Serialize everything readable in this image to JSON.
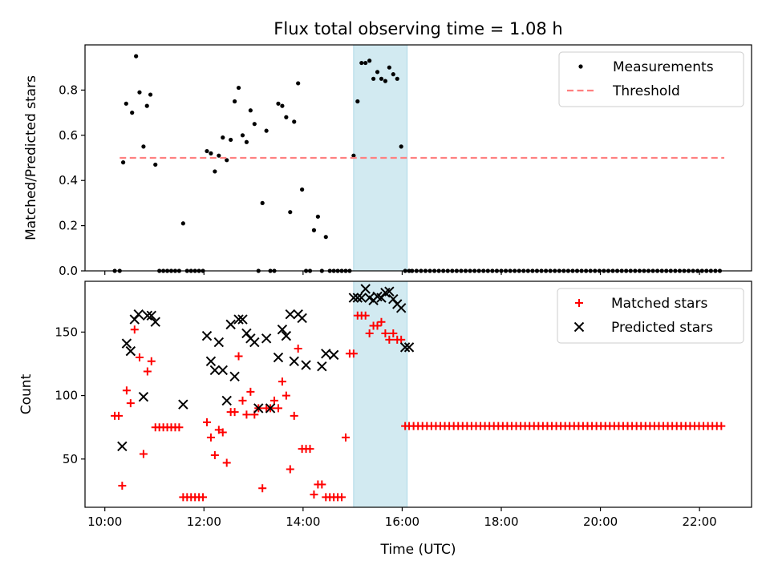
{
  "chart_data": {
    "title": "Flux total observing time = 1.08 h",
    "x_unit": "hours (UTC)",
    "xlim": [
      9.6,
      23.05
    ],
    "highlight_interval": [
      15.02,
      16.1
    ],
    "highlight_color": "#add8e6",
    "x_ticks": [
      10,
      12,
      14,
      16,
      18,
      20,
      22
    ],
    "x_tick_labels": [
      "10:00",
      "12:00",
      "14:00",
      "16:00",
      "18:00",
      "20:00",
      "22:00"
    ],
    "xlabel": "Time (UTC)",
    "top": {
      "type": "scatter",
      "ylabel": "Matched/Predicted stars",
      "ylim": [
        0,
        1.0
      ],
      "y_ticks": [
        0.0,
        0.2,
        0.4,
        0.6,
        0.8
      ],
      "y_tick_labels": [
        "0.0",
        "0.2",
        "0.4",
        "0.6",
        "0.8"
      ],
      "legend_position": "top-right",
      "series": [
        {
          "name": "Measurements",
          "color": "#000000",
          "marker": "dot",
          "x": [
            10.2,
            10.3,
            10.37,
            10.43,
            10.55,
            10.63,
            10.7,
            10.78,
            10.85,
            10.92,
            11.02,
            11.1,
            11.18,
            11.26,
            11.34,
            11.42,
            11.5,
            11.58,
            11.66,
            11.74,
            11.82,
            11.9,
            11.98,
            12.06,
            12.14,
            12.22,
            12.3,
            12.38,
            12.46,
            12.54,
            12.62,
            12.7,
            12.78,
            12.86,
            12.94,
            13.02,
            13.1,
            13.18,
            13.26,
            13.34,
            13.42,
            13.5,
            13.58,
            13.66,
            13.74,
            13.82,
            13.9,
            13.98,
            14.06,
            14.14,
            14.22,
            14.3,
            14.38,
            14.46,
            14.54,
            14.62,
            14.7,
            14.78,
            14.86,
            14.94,
            15.02,
            15.1,
            15.18,
            15.26,
            15.34,
            15.42,
            15.5,
            15.58,
            15.66,
            15.74,
            15.82,
            15.9,
            15.98,
            16.06,
            16.14
          ],
          "y": [
            0.0,
            0.0,
            0.48,
            0.74,
            0.7,
            0.95,
            0.79,
            0.55,
            0.73,
            0.78,
            0.47,
            0.0,
            0.0,
            0.0,
            0.0,
            0.0,
            0.0,
            0.21,
            0.0,
            0.0,
            0.0,
            0.0,
            0.0,
            0.53,
            0.52,
            0.44,
            0.51,
            0.59,
            0.49,
            0.58,
            0.75,
            0.81,
            0.6,
            0.57,
            0.71,
            0.65,
            0.0,
            0.3,
            0.62,
            0.0,
            0.0,
            0.74,
            0.73,
            0.68,
            0.26,
            0.66,
            0.83,
            0.36,
            0.0,
            0.0,
            0.18,
            0.24,
            0.0,
            0.15,
            0.0,
            0.0,
            0.0,
            0.0,
            0.0,
            0.0,
            0.51,
            0.75,
            0.92,
            0.92,
            0.93,
            0.85,
            0.88,
            0.85,
            0.84,
            0.9,
            0.87,
            0.85,
            0.55,
            0.0,
            0.0
          ]
        },
        {
          "name": "Threshold",
          "color": "#ff8080",
          "marker": "dashed-line",
          "x": [
            10.3,
            22.5
          ],
          "y": [
            0.5,
            0.5
          ]
        }
      ],
      "zero_tail": {
        "x_start": 16.2,
        "x_end": 22.45,
        "step": 0.09,
        "y": 0.0
      }
    },
    "bottom": {
      "type": "scatter",
      "ylabel": "Count",
      "ylim": [
        12,
        190
      ],
      "y_ticks": [
        50,
        100,
        150
      ],
      "y_tick_labels": [
        "50",
        "100",
        "150"
      ],
      "legend_position": "top-right",
      "series": [
        {
          "name": "Matched stars",
          "color": "#ff0000",
          "marker": "plus",
          "x": [
            10.2,
            10.28,
            10.35,
            10.44,
            10.52,
            10.6,
            10.7,
            10.78,
            10.86,
            10.94,
            11.02,
            11.1,
            11.18,
            11.26,
            11.34,
            11.42,
            11.5,
            11.58,
            11.66,
            11.74,
            11.82,
            11.9,
            11.98,
            12.06,
            12.14,
            12.22,
            12.3,
            12.38,
            12.46,
            12.54,
            12.62,
            12.7,
            12.78,
            12.86,
            12.94,
            13.02,
            13.1,
            13.18,
            13.26,
            13.34,
            13.42,
            13.5,
            13.58,
            13.66,
            13.74,
            13.82,
            13.9,
            13.98,
            14.06,
            14.14,
            14.22,
            14.3,
            14.38,
            14.46,
            14.54,
            14.62,
            14.7,
            14.78,
            14.86,
            14.94,
            15.02,
            15.1,
            15.18,
            15.26,
            15.34,
            15.42,
            15.5,
            15.58,
            15.66,
            15.74,
            15.82,
            15.9,
            15.98,
            16.06
          ],
          "y": [
            84,
            84,
            29,
            104,
            94,
            152,
            130,
            54,
            119,
            127,
            75,
            75,
            75,
            75,
            75,
            75,
            75,
            20,
            20,
            20,
            20,
            20,
            20,
            79,
            67,
            53,
            73,
            71,
            47,
            87,
            87,
            131,
            96,
            85,
            103,
            85,
            90,
            27,
            90,
            90,
            96,
            90,
            111,
            100,
            42,
            84,
            137,
            58,
            58,
            58,
            22,
            30,
            30,
            20,
            20,
            20,
            20,
            20,
            67,
            133,
            133,
            163,
            163,
            163,
            149,
            155,
            155,
            158,
            149,
            144,
            149,
            144,
            144,
            76
          ]
        },
        {
          "name": "Predicted stars",
          "color": "#000000",
          "marker": "x",
          "x": [
            10.35,
            10.44,
            10.52,
            10.6,
            10.68,
            10.78,
            10.86,
            10.94,
            11.02,
            11.58,
            12.06,
            12.14,
            12.22,
            12.3,
            12.38,
            12.46,
            12.54,
            12.62,
            12.7,
            12.78,
            12.86,
            12.94,
            13.02,
            13.1,
            13.26,
            13.34,
            13.5,
            13.58,
            13.66,
            13.74,
            13.82,
            13.9,
            13.98,
            14.06,
            14.38,
            14.46,
            14.62,
            15.02,
            15.1,
            15.18,
            15.26,
            15.34,
            15.42,
            15.5,
            15.58,
            15.66,
            15.74,
            15.82,
            15.9,
            15.98,
            16.06,
            16.14
          ],
          "y": [
            60,
            141,
            135,
            160,
            164,
            99,
            163,
            163,
            158,
            93,
            147,
            127,
            120,
            142,
            120,
            96,
            156,
            115,
            160,
            160,
            149,
            145,
            142,
            90,
            145,
            90,
            130,
            152,
            147,
            164,
            127,
            164,
            161,
            124,
            123,
            133,
            132,
            177,
            177,
            177,
            184,
            177,
            175,
            178,
            177,
            181,
            182,
            176,
            172,
            169,
            138,
            138
          ]
        }
      ],
      "matched_tail": {
        "x_start": 16.14,
        "x_end": 22.45,
        "step": 0.09,
        "y": 76
      }
    }
  }
}
